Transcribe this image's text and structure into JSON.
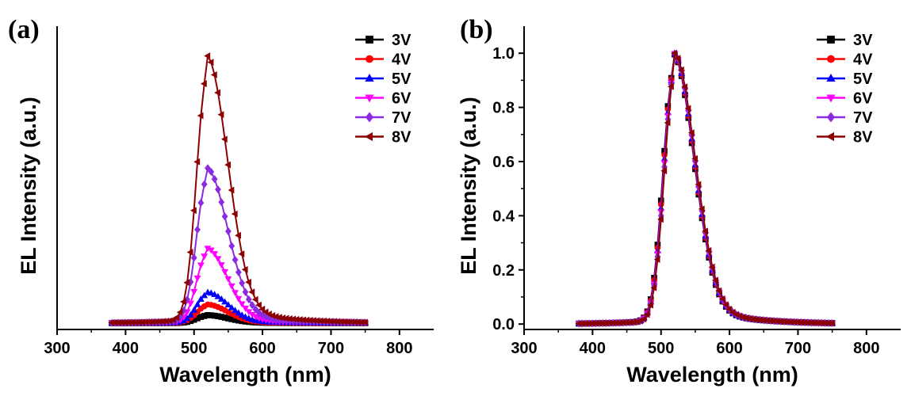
{
  "chart_data": [
    {
      "type": "line",
      "panel_label": "(a)",
      "title": "",
      "xlabel": "Wavelength (nm)",
      "ylabel": "EL Intensity (a.u.)",
      "xlim": [
        300,
        850
      ],
      "ylim": [
        0,
        100
      ],
      "xticks": [
        300,
        400,
        500,
        600,
        700,
        800
      ],
      "yticks": [],
      "x_start": 380,
      "x_step": 5,
      "x_end": 750,
      "legend_position": "top-right",
      "grid": false,
      "series": [
        {
          "name": "3V",
          "color": "#000000",
          "marker": "square",
          "peak": 3
        },
        {
          "name": "4V",
          "color": "#ff0000",
          "marker": "circle",
          "peak": 7
        },
        {
          "name": "5V",
          "color": "#0000ff",
          "marker": "triangle-up",
          "peak": 11.5
        },
        {
          "name": "6V",
          "color": "#ff00ff",
          "marker": "triangle-down",
          "peak": 28
        },
        {
          "name": "7V",
          "color": "#8a2be2",
          "marker": "diamond",
          "peak": 58
        },
        {
          "name": "8V",
          "color": "#8b0000",
          "marker": "triangle-left",
          "peak": 100
        }
      ]
    },
    {
      "type": "line",
      "panel_label": "(b)",
      "title": "",
      "xlabel": "Wavelength (nm)",
      "ylabel": "EL Intensity (a.u.)",
      "xlim": [
        300,
        850
      ],
      "ylim": [
        -0.02,
        1.1
      ],
      "xticks": [
        300,
        400,
        500,
        600,
        700,
        800
      ],
      "yticks": [
        0.0,
        0.2,
        0.4,
        0.6,
        0.8,
        1.0
      ],
      "ytick_labels": [
        "0.0",
        "0.2",
        "0.4",
        "0.6",
        "0.8",
        "1.0"
      ],
      "x_start": 380,
      "x_step": 5,
      "x_end": 750,
      "legend_position": "top-right",
      "grid": false,
      "series": [
        {
          "name": "3V",
          "color": "#000000",
          "marker": "square",
          "peak": 1.0
        },
        {
          "name": "4V",
          "color": "#ff0000",
          "marker": "circle",
          "peak": 1.0
        },
        {
          "name": "5V",
          "color": "#0000ff",
          "marker": "triangle-up",
          "peak": 1.0
        },
        {
          "name": "6V",
          "color": "#ff00ff",
          "marker": "triangle-down",
          "peak": 1.0
        },
        {
          "name": "7V",
          "color": "#8a2be2",
          "marker": "diamond",
          "peak": 1.0
        },
        {
          "name": "8V",
          "color": "#8b0000",
          "marker": "triangle-left",
          "peak": 1.0
        }
      ]
    }
  ]
}
